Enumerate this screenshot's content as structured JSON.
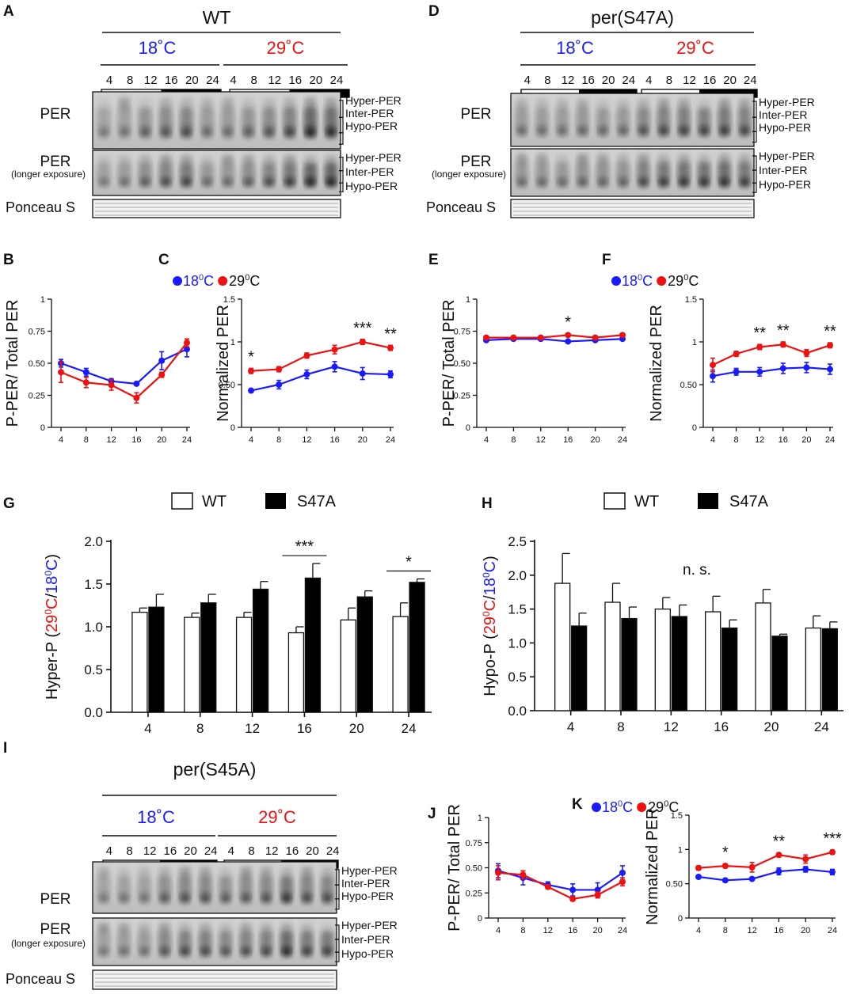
{
  "colors": {
    "c18": "#1a1aff",
    "c29": "#ee1111",
    "wt_bar": "#ffffff",
    "s47a_bar": "#000000"
  },
  "blots": [
    {
      "id": "wt",
      "panel": "A",
      "genotype": "WT",
      "temp_low": "18˚C",
      "temp_high": "29˚C",
      "timepoints": [
        "4",
        "8",
        "12",
        "16",
        "20",
        "24",
        "4",
        "8",
        "12",
        "16",
        "20",
        "24"
      ],
      "row1": "PER",
      "row2a": "PER",
      "row2b": "(longer exposure)",
      "ponceau": "Ponceau S",
      "bands": [
        "Hyper-PER",
        "Inter-PER",
        "Hypo-PER"
      ]
    },
    {
      "id": "s47",
      "panel": "D",
      "genotype": "per(S47A)",
      "temp_low": "18˚C",
      "temp_high": "29˚C",
      "timepoints": [
        "4",
        "8",
        "12",
        "16",
        "20",
        "24",
        "4",
        "8",
        "12",
        "16",
        "20",
        "24"
      ],
      "row1": "PER",
      "row2a": "PER",
      "row2b": "(longer exposure)",
      "ponceau": "Ponceau S",
      "bands": [
        "Hyper-PER",
        "Inter-PER",
        "Hypo-PER"
      ]
    },
    {
      "id": "s45",
      "panel": "I",
      "genotype": "per(S45A)",
      "temp_low": "18˚C",
      "temp_high": "29˚C",
      "timepoints": [
        "4",
        "8",
        "12",
        "16",
        "20",
        "24",
        "4",
        "8",
        "12",
        "16",
        "20",
        "24"
      ],
      "row1": "PER",
      "row2a": "PER",
      "row2b": "(longer exposure)",
      "ponceau": "Ponceau S",
      "bands": [
        "Hyper-PER",
        "Inter-PER",
        "Hypo-PER"
      ]
    }
  ],
  "legend_temp": {
    "low": "18",
    "high": "29",
    "sup": "0",
    "unit": "C"
  },
  "legend_bar": {
    "wt": "WT",
    "s47a": "S47A"
  },
  "chart_data": [
    {
      "panel": "B",
      "type": "line",
      "ylabel": "P-PER/ Total PER",
      "x": [
        4,
        8,
        12,
        16,
        20,
        24
      ],
      "xticks": [
        "4",
        "8",
        "12",
        "16",
        "20",
        "24"
      ],
      "ylim": [
        0,
        1
      ],
      "yticks": [
        "0",
        "0.25",
        "0.50",
        "0.75",
        "1"
      ],
      "series": [
        {
          "name": "18°C",
          "values": [
            0.5,
            0.43,
            0.36,
            0.34,
            0.52,
            0.61
          ],
          "err": [
            0.03,
            0.03,
            0.02,
            0.01,
            0.07,
            0.06
          ]
        },
        {
          "name": "29°C",
          "values": [
            0.43,
            0.35,
            0.33,
            0.23,
            0.41,
            0.66
          ],
          "err": [
            0.08,
            0.04,
            0.04,
            0.04,
            0.02,
            0.03
          ]
        }
      ],
      "annotations": []
    },
    {
      "panel": "C",
      "type": "line",
      "ylabel": "Normalized PER",
      "x": [
        4,
        8,
        12,
        16,
        20,
        24
      ],
      "xticks": [
        "4",
        "8",
        "12",
        "16",
        "20",
        "24"
      ],
      "ylim": [
        0,
        1.5
      ],
      "yticks": [
        "0",
        "0.50",
        "1",
        "1.5"
      ],
      "series": [
        {
          "name": "18°C",
          "values": [
            0.43,
            0.5,
            0.62,
            0.71,
            0.63,
            0.62
          ],
          "err": [
            0.02,
            0.05,
            0.05,
            0.06,
            0.07,
            0.04
          ]
        },
        {
          "name": "29°C",
          "values": [
            0.66,
            0.68,
            0.84,
            0.91,
            1.0,
            0.93
          ],
          "err": [
            0.03,
            0.03,
            0.03,
            0.05,
            0.03,
            0.03
          ]
        }
      ],
      "annotations": [
        {
          "x": 4,
          "text": "*"
        },
        {
          "x": 20,
          "text": "***"
        },
        {
          "x": 24,
          "text": "**"
        }
      ]
    },
    {
      "panel": "E",
      "type": "line",
      "ylabel": "P-PER/ Total PER",
      "x": [
        4,
        8,
        12,
        16,
        20,
        24
      ],
      "xticks": [
        "4",
        "8",
        "12",
        "16",
        "20",
        "24"
      ],
      "ylim": [
        0,
        1
      ],
      "yticks": [
        "0",
        "0.25",
        "0.50",
        "0.75",
        "1"
      ],
      "series": [
        {
          "name": "18°C",
          "values": [
            0.68,
            0.69,
            0.69,
            0.67,
            0.68,
            0.69
          ],
          "err": [
            0.01,
            0.01,
            0.01,
            0.01,
            0.01,
            0.01
          ]
        },
        {
          "name": "29°C",
          "values": [
            0.7,
            0.7,
            0.7,
            0.72,
            0.7,
            0.72
          ],
          "err": [
            0.01,
            0.01,
            0.01,
            0.01,
            0.01,
            0.01
          ]
        }
      ],
      "annotations": [
        {
          "x": 16,
          "text": "*"
        }
      ]
    },
    {
      "panel": "F",
      "type": "line",
      "ylabel": "Normalized PER",
      "x": [
        4,
        8,
        12,
        16,
        20,
        24
      ],
      "xticks": [
        "4",
        "8",
        "12",
        "16",
        "20",
        "24"
      ],
      "ylim": [
        0,
        1.5
      ],
      "yticks": [
        "0",
        "0.50",
        "1",
        "1.5"
      ],
      "series": [
        {
          "name": "18°C",
          "values": [
            0.6,
            0.65,
            0.65,
            0.69,
            0.7,
            0.68
          ],
          "err": [
            0.07,
            0.04,
            0.05,
            0.06,
            0.06,
            0.06
          ]
        },
        {
          "name": "29°C",
          "values": [
            0.73,
            0.86,
            0.94,
            0.97,
            0.87,
            0.96
          ],
          "err": [
            0.08,
            0.03,
            0.03,
            0.03,
            0.04,
            0.03
          ]
        }
      ],
      "annotations": [
        {
          "x": 12,
          "text": "**"
        },
        {
          "x": 16,
          "text": "**"
        },
        {
          "x": 24,
          "text": "**"
        }
      ]
    },
    {
      "panel": "G",
      "type": "bar",
      "categories": [
        "4",
        "8",
        "12",
        "16",
        "20",
        "24"
      ],
      "ylim": [
        0,
        2
      ],
      "yticks": [
        "0.0",
        "0.5",
        "1.0",
        "1.5",
        "2.0"
      ],
      "ylabel": {
        "pre": "Hyper-P (",
        "hi": "29",
        "hi_sup": "0",
        "hi_unit": "C",
        "slash": "/",
        "lo": "18",
        "lo_sup": "0",
        "lo_unit": "C",
        "post": ")"
      },
      "series": [
        {
          "name": "WT",
          "values": [
            1.17,
            1.11,
            1.11,
            0.93,
            1.08,
            1.12
          ],
          "err": [
            0.05,
            0.05,
            0.06,
            0.07,
            0.14,
            0.16
          ]
        },
        {
          "name": "S47A",
          "values": [
            1.23,
            1.28,
            1.44,
            1.57,
            1.35,
            1.52
          ],
          "err": [
            0.15,
            0.1,
            0.09,
            0.17,
            0.07,
            0.04
          ]
        }
      ],
      "annotations": [
        {
          "category": "16",
          "text": "***"
        },
        {
          "category": "24",
          "text": "*"
        }
      ]
    },
    {
      "panel": "H",
      "type": "bar",
      "categories": [
        "4",
        "8",
        "12",
        "16",
        "20",
        "24"
      ],
      "ylim": [
        0,
        2.5
      ],
      "yticks": [
        "0.0",
        "0.5",
        "1.0",
        "1.5",
        "2.0",
        "2.5"
      ],
      "ylabel": {
        "pre": "Hypo-P (",
        "hi": "29",
        "hi_sup": "0",
        "hi_unit": "C",
        "slash": "/",
        "lo": "18",
        "lo_sup": "0",
        "lo_unit": "C",
        "post": ")"
      },
      "series": [
        {
          "name": "WT",
          "values": [
            1.88,
            1.6,
            1.5,
            1.46,
            1.59,
            1.22
          ],
          "err": [
            0.44,
            0.28,
            0.17,
            0.23,
            0.2,
            0.18
          ]
        },
        {
          "name": "S47A",
          "values": [
            1.25,
            1.36,
            1.39,
            1.22,
            1.1,
            1.21
          ],
          "err": [
            0.19,
            0.17,
            0.17,
            0.12,
            0.03,
            0.1
          ]
        }
      ],
      "annotations": [
        {
          "text": "n. s."
        }
      ]
    },
    {
      "panel": "J",
      "type": "line",
      "ylabel": "P-PER/ Total PER",
      "x": [
        4,
        8,
        12,
        16,
        20,
        24
      ],
      "xticks": [
        "4",
        "8",
        "12",
        "16",
        "20",
        "24"
      ],
      "ylim": [
        0,
        1
      ],
      "yticks": [
        "0",
        "0.25",
        "0.50",
        "0.75",
        "1"
      ],
      "series": [
        {
          "name": "18°C",
          "values": [
            0.47,
            0.4,
            0.33,
            0.28,
            0.28,
            0.45
          ],
          "err": [
            0.07,
            0.07,
            0.03,
            0.06,
            0.07,
            0.07
          ]
        },
        {
          "name": "29°C",
          "values": [
            0.45,
            0.43,
            0.31,
            0.19,
            0.23,
            0.36
          ],
          "err": [
            0.07,
            0.04,
            0.02,
            0.02,
            0.03,
            0.04
          ]
        }
      ],
      "annotations": []
    },
    {
      "panel": "K",
      "type": "line",
      "ylabel": "Normalized PER",
      "x": [
        4,
        8,
        12,
        16,
        20,
        24
      ],
      "xticks": [
        "4",
        "8",
        "12",
        "16",
        "20",
        "24"
      ],
      "ylim": [
        0,
        1.5
      ],
      "yticks": [
        "0",
        "0.50",
        "1",
        "1.5"
      ],
      "series": [
        {
          "name": "18°C",
          "values": [
            0.6,
            0.55,
            0.57,
            0.68,
            0.71,
            0.67
          ],
          "err": [
            0.02,
            0.02,
            0.02,
            0.05,
            0.04,
            0.04
          ]
        },
        {
          "name": "29°C",
          "values": [
            0.73,
            0.76,
            0.74,
            0.92,
            0.86,
            0.96
          ],
          "err": [
            0.03,
            0.03,
            0.07,
            0.03,
            0.06,
            0.03
          ]
        }
      ],
      "annotations": [
        {
          "x": 8,
          "text": "*"
        },
        {
          "x": 16,
          "text": "**"
        },
        {
          "x": 24,
          "text": "***"
        }
      ]
    }
  ]
}
